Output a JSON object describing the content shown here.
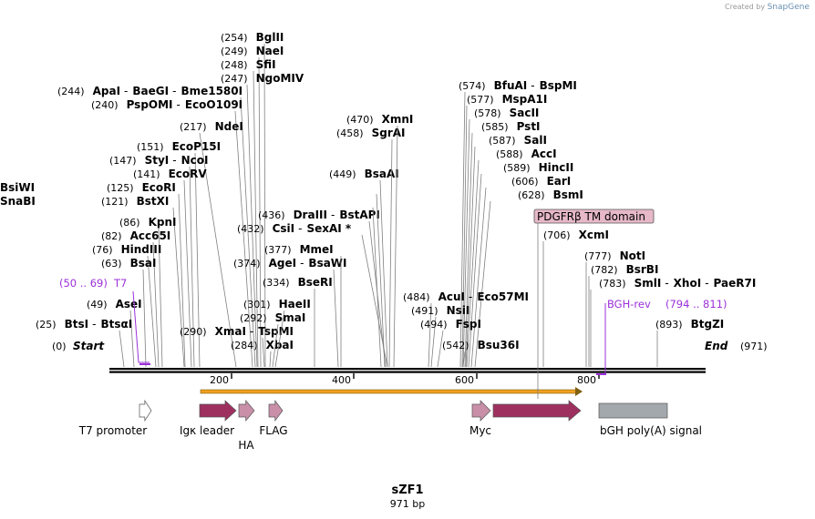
{
  "credit": {
    "prefix": "Created by",
    "brand": "SnapGene"
  },
  "map_title": "sZF1",
  "map_size": "971 bp",
  "end_labels": {
    "start": "Start",
    "start_pos": "(0)",
    "end": "End",
    "end_pos": "(971)"
  },
  "ticks": [
    "200",
    "400",
    "600",
    "800"
  ],
  "sites": [
    {
      "pos": "(254)",
      "names": [
        "BglII"
      ]
    },
    {
      "pos": "(249)",
      "names": [
        "NaeI"
      ]
    },
    {
      "pos": "(248)",
      "names": [
        "SfiI"
      ]
    },
    {
      "pos": "(247)",
      "names": [
        "NgoMIV"
      ]
    },
    {
      "pos": "(244)",
      "names": [
        "ApaI",
        "BaeGI",
        "Bme1580I"
      ]
    },
    {
      "pos": "(240)",
      "names": [
        "PspOMI",
        "EcoO109I"
      ]
    },
    {
      "pos": "(217)",
      "names": [
        "NdeI"
      ]
    },
    {
      "pos": "(151)",
      "names": [
        "EcoP15I"
      ]
    },
    {
      "pos": "(147)",
      "names": [
        "StyI",
        "NcoI"
      ]
    },
    {
      "pos": "(141)",
      "names": [
        "EcoRV"
      ]
    },
    {
      "pos": "(125)",
      "names": [
        "EcoRI"
      ]
    },
    {
      "pos": "(121)",
      "names": [
        "BstXI"
      ]
    },
    {
      "pos": "(86)",
      "names": [
        "KpnI"
      ]
    },
    {
      "pos": "(82)",
      "names": [
        "Acc65I"
      ]
    },
    {
      "pos": "(76)",
      "names": [
        "HindIII"
      ]
    },
    {
      "pos": "(63)",
      "names": [
        "BsaI"
      ]
    },
    {
      "pos": "(49)",
      "names": [
        "AseI"
      ]
    },
    {
      "pos": "(25)",
      "names": [
        "BtsI",
        "BtsαI"
      ]
    },
    {
      "pos": "(290)",
      "names": [
        "XmaI",
        "TspMI"
      ]
    },
    {
      "pos": "(284)",
      "names": [
        "XbaI"
      ]
    },
    {
      "pos": "(292)",
      "names": [
        "SmaI"
      ]
    },
    {
      "pos": "(301)",
      "names": [
        "HaeII"
      ]
    },
    {
      "pos": "(334)",
      "names": [
        "BseRI"
      ]
    },
    {
      "pos": "(374)",
      "names": [
        "AgeI",
        "BsaWI"
      ]
    },
    {
      "pos": "(377)",
      "names": [
        "MmeI"
      ]
    },
    {
      "pos": "(432)",
      "names": [
        "CsiI",
        "SexAI *"
      ]
    },
    {
      "pos": "(436)",
      "names": [
        "DraIII",
        "BstAPI"
      ]
    },
    {
      "pos": "",
      "names": [
        "SnaBI"
      ]
    },
    {
      "pos": "",
      "names": [
        "BsiWI"
      ]
    },
    {
      "pos": "(449)",
      "names": [
        "BsaAI"
      ]
    },
    {
      "pos": "(458)",
      "names": [
        "SgrAI"
      ]
    },
    {
      "pos": "(470)",
      "names": [
        "XmnI"
      ]
    },
    {
      "pos": "(574)",
      "names": [
        "BfuAI",
        "BspMI"
      ]
    },
    {
      "pos": "(577)",
      "names": [
        "MspA1I"
      ]
    },
    {
      "pos": "(578)",
      "names": [
        "SacII"
      ]
    },
    {
      "pos": "(585)",
      "names": [
        "PstI"
      ]
    },
    {
      "pos": "(587)",
      "names": [
        "SalI"
      ]
    },
    {
      "pos": "(588)",
      "names": [
        "AccI"
      ]
    },
    {
      "pos": "(589)",
      "names": [
        "HincII"
      ]
    },
    {
      "pos": "(606)",
      "names": [
        "EarI"
      ]
    },
    {
      "pos": "(628)",
      "names": [
        "BsmI"
      ]
    },
    {
      "pos": "(484)",
      "names": [
        "AcuI",
        "Eco57MI"
      ]
    },
    {
      "pos": "(491)",
      "names": [
        "NsiI"
      ]
    },
    {
      "pos": "(494)",
      "names": [
        "FspI"
      ]
    },
    {
      "pos": "(542)",
      "names": [
        "Bsu36I"
      ]
    },
    {
      "pos": "(706)",
      "names": [
        "XcmI"
      ]
    },
    {
      "pos": "(777)",
      "names": [
        "NotI"
      ]
    },
    {
      "pos": "(782)",
      "names": [
        "BsrBI"
      ]
    },
    {
      "pos": "(783)",
      "names": [
        "SmlI",
        "XhoI",
        "PaeR7I"
      ]
    },
    {
      "pos": "(893)",
      "names": [
        "BtgZI"
      ]
    }
  ],
  "primers": [
    {
      "name": "T7",
      "range": "(50 .. 69)"
    },
    {
      "name": "BGH-rev",
      "range": "(794 .. 811)"
    }
  ],
  "features": [
    {
      "name": "T7 promoter",
      "color": "#ffffff"
    },
    {
      "name": "Igκ leader",
      "color": "#9e3060"
    },
    {
      "name": "HA",
      "color": "#c98fa8"
    },
    {
      "name": "FLAG",
      "color": "#c98fa8"
    },
    {
      "name": "Myc",
      "color": "#c98fa8"
    },
    {
      "name": "PDGFRβ TM domain",
      "color": "#9e3060"
    },
    {
      "name": "bGH poly(A) signal",
      "color": "#a3a8ad"
    }
  ],
  "orf_color": "#f0a020",
  "tm_box_color": "#e6b8c8"
}
